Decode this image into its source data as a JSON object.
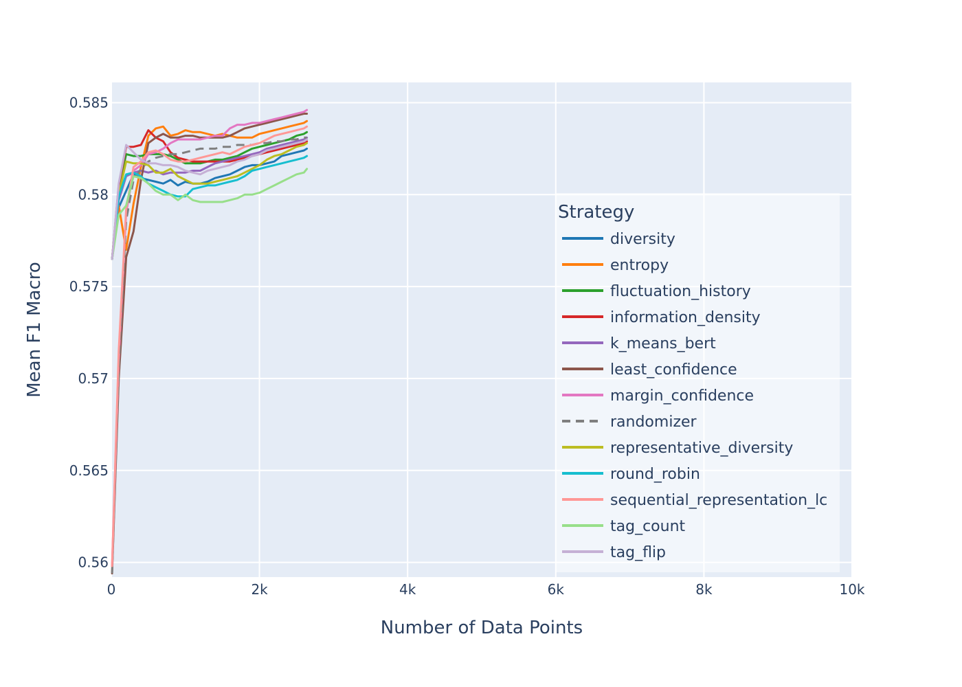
{
  "chart_data": {
    "type": "line",
    "xlabel": "Number of Data Points",
    "ylabel": "Mean F1 Macro",
    "xlim": [
      0,
      10000
    ],
    "ylim": [
      0.5592,
      0.5861
    ],
    "x_ticks": [
      0,
      2000,
      4000,
      6000,
      8000,
      10000
    ],
    "x_tick_labels": [
      "0",
      "2k",
      "4k",
      "6k",
      "8k",
      "10k"
    ],
    "y_ticks": [
      0.56,
      0.565,
      0.57,
      0.575,
      0.58,
      0.585
    ],
    "y_tick_labels": [
      "0.56",
      "0.565",
      "0.57",
      "0.575",
      "0.58",
      "0.585"
    ],
    "grid": true,
    "legend_title": "Strategy",
    "legend_position": "right",
    "x": [
      10,
      100,
      200,
      300,
      400,
      500,
      600,
      700,
      800,
      900,
      1000,
      1100,
      1200,
      1300,
      1400,
      1500,
      1600,
      1700,
      1800,
      1900,
      2000,
      2100,
      2200,
      2300,
      2400,
      2500,
      2600,
      2640
    ],
    "series": [
      {
        "name": "diversity",
        "color": "#1f77b4",
        "dash": "solid",
        "values": [
          0.5765,
          0.5793,
          0.5802,
          0.5811,
          0.5809,
          0.5808,
          0.5807,
          0.5806,
          0.5808,
          0.5805,
          0.5807,
          0.5806,
          0.5806,
          0.5807,
          0.5809,
          0.581,
          0.5811,
          0.5813,
          0.5815,
          0.5816,
          0.5816,
          0.5817,
          0.5818,
          0.5821,
          0.5822,
          0.5823,
          0.5824,
          0.5825
        ]
      },
      {
        "name": "entropy",
        "color": "#ff7f0e",
        "dash": "solid",
        "values": [
          0.5765,
          0.5794,
          0.577,
          0.5795,
          0.5815,
          0.5832,
          0.5836,
          0.5837,
          0.5832,
          0.5833,
          0.5835,
          0.5834,
          0.5834,
          0.5833,
          0.5832,
          0.5833,
          0.5832,
          0.5831,
          0.5831,
          0.5831,
          0.5833,
          0.5834,
          0.5835,
          0.5836,
          0.5837,
          0.5838,
          0.5839,
          0.584
        ]
      },
      {
        "name": "fluctuation_history",
        "color": "#2ca02c",
        "dash": "solid",
        "values": [
          0.5765,
          0.5803,
          0.5822,
          0.5821,
          0.5821,
          0.5822,
          0.5822,
          0.5822,
          0.5821,
          0.5819,
          0.5817,
          0.5817,
          0.5817,
          0.5818,
          0.5819,
          0.5819,
          0.582,
          0.5821,
          0.5823,
          0.5825,
          0.5826,
          0.5827,
          0.5828,
          0.5829,
          0.583,
          0.5832,
          0.5833,
          0.5834
        ]
      },
      {
        "name": "information_density",
        "color": "#d62728",
        "dash": "solid",
        "values": [
          0.5765,
          0.5805,
          0.5826,
          0.5826,
          0.5827,
          0.5835,
          0.5831,
          0.5829,
          0.5823,
          0.582,
          0.5819,
          0.5818,
          0.5818,
          0.5818,
          0.5818,
          0.5818,
          0.5818,
          0.5819,
          0.582,
          0.5821,
          0.5822,
          0.5823,
          0.5824,
          0.5825,
          0.5826,
          0.5827,
          0.5828,
          0.5829
        ]
      },
      {
        "name": "k_means_bert",
        "color": "#9467bd",
        "dash": "solid",
        "values": [
          0.5765,
          0.5797,
          0.581,
          0.5812,
          0.5813,
          0.5812,
          0.5813,
          0.5811,
          0.5812,
          0.5812,
          0.5812,
          0.5813,
          0.5813,
          0.5815,
          0.5817,
          0.5818,
          0.5819,
          0.582,
          0.5821,
          0.5822,
          0.5823,
          0.5825,
          0.5826,
          0.5827,
          0.5828,
          0.5829,
          0.583,
          0.5831
        ]
      },
      {
        "name": "least_confidence",
        "color": "#8c564b",
        "dash": "solid",
        "values": [
          0.5594,
          0.57,
          0.5766,
          0.578,
          0.5808,
          0.5828,
          0.5831,
          0.5833,
          0.5831,
          0.5831,
          0.5832,
          0.5832,
          0.5831,
          0.5831,
          0.5831,
          0.5831,
          0.5832,
          0.5834,
          0.5836,
          0.5837,
          0.5838,
          0.5839,
          0.584,
          0.5841,
          0.5842,
          0.5843,
          0.5844,
          0.5844
        ]
      },
      {
        "name": "margin_confidence",
        "color": "#e377c2",
        "dash": "solid",
        "values": [
          0.5598,
          0.571,
          0.579,
          0.5813,
          0.5816,
          0.5822,
          0.5823,
          0.5825,
          0.5828,
          0.583,
          0.583,
          0.583,
          0.583,
          0.5831,
          0.5832,
          0.5832,
          0.5836,
          0.5838,
          0.5838,
          0.5839,
          0.5839,
          0.584,
          0.5841,
          0.5842,
          0.5843,
          0.5844,
          0.5845,
          0.5846
        ]
      },
      {
        "name": "randomizer",
        "color": "#7f7f7f",
        "dash": "dash",
        "values": [
          0.5594,
          0.5705,
          0.5786,
          0.5808,
          0.5814,
          0.5818,
          0.582,
          0.5821,
          0.5822,
          0.5822,
          0.5823,
          0.5824,
          0.5825,
          0.5825,
          0.5825,
          0.5826,
          0.5826,
          0.5827,
          0.5827,
          0.5827,
          0.5828,
          0.5828,
          0.5829,
          0.5829,
          0.583,
          0.583,
          0.5831,
          0.5831
        ]
      },
      {
        "name": "representative_diversity",
        "color": "#bcbd22",
        "dash": "solid",
        "values": [
          0.5765,
          0.58,
          0.5818,
          0.5817,
          0.5817,
          0.5816,
          0.5812,
          0.5812,
          0.5814,
          0.581,
          0.5808,
          0.5806,
          0.5806,
          0.5806,
          0.5807,
          0.5808,
          0.5809,
          0.581,
          0.5812,
          0.5814,
          0.5816,
          0.5819,
          0.5821,
          0.5822,
          0.5824,
          0.5826,
          0.5827,
          0.5828
        ]
      },
      {
        "name": "round_robin",
        "color": "#17becf",
        "dash": "solid",
        "values": [
          0.5765,
          0.5799,
          0.5811,
          0.5812,
          0.581,
          0.5806,
          0.5804,
          0.5802,
          0.58,
          0.5799,
          0.5799,
          0.5803,
          0.5804,
          0.5805,
          0.5805,
          0.5806,
          0.5807,
          0.5808,
          0.581,
          0.5813,
          0.5814,
          0.5815,
          0.5816,
          0.5817,
          0.5818,
          0.5819,
          0.582,
          0.5821
        ]
      },
      {
        "name": "sequential_representation_lc",
        "color": "#ff9896",
        "dash": "solid",
        "values": [
          0.5598,
          0.5715,
          0.5792,
          0.5815,
          0.5818,
          0.5823,
          0.5824,
          0.5822,
          0.5819,
          0.5818,
          0.5818,
          0.5819,
          0.582,
          0.5821,
          0.5822,
          0.5823,
          0.5822,
          0.5824,
          0.5826,
          0.5827,
          0.5828,
          0.583,
          0.5832,
          0.5833,
          0.5834,
          0.5835,
          0.5836,
          0.5837
        ]
      },
      {
        "name": "tag_count",
        "color": "#98df8a",
        "dash": "solid",
        "values": [
          0.5765,
          0.5789,
          0.5794,
          0.581,
          0.5809,
          0.5806,
          0.5802,
          0.58,
          0.58,
          0.5797,
          0.58,
          0.5797,
          0.5796,
          0.5796,
          0.5796,
          0.5796,
          0.5797,
          0.5798,
          0.58,
          0.58,
          0.5801,
          0.5803,
          0.5805,
          0.5807,
          0.5809,
          0.5811,
          0.5812,
          0.5814
        ]
      },
      {
        "name": "tag_flip",
        "color": "#c5b0d5",
        "dash": "solid",
        "values": [
          0.5765,
          0.5806,
          0.5827,
          0.5823,
          0.5819,
          0.5817,
          0.5817,
          0.5816,
          0.5816,
          0.5815,
          0.5813,
          0.5812,
          0.5811,
          0.5813,
          0.5814,
          0.5815,
          0.5816,
          0.5818,
          0.5819,
          0.5821,
          0.5822,
          0.5824,
          0.5825,
          0.5826,
          0.5827,
          0.5828,
          0.5829,
          0.583
        ]
      }
    ]
  }
}
